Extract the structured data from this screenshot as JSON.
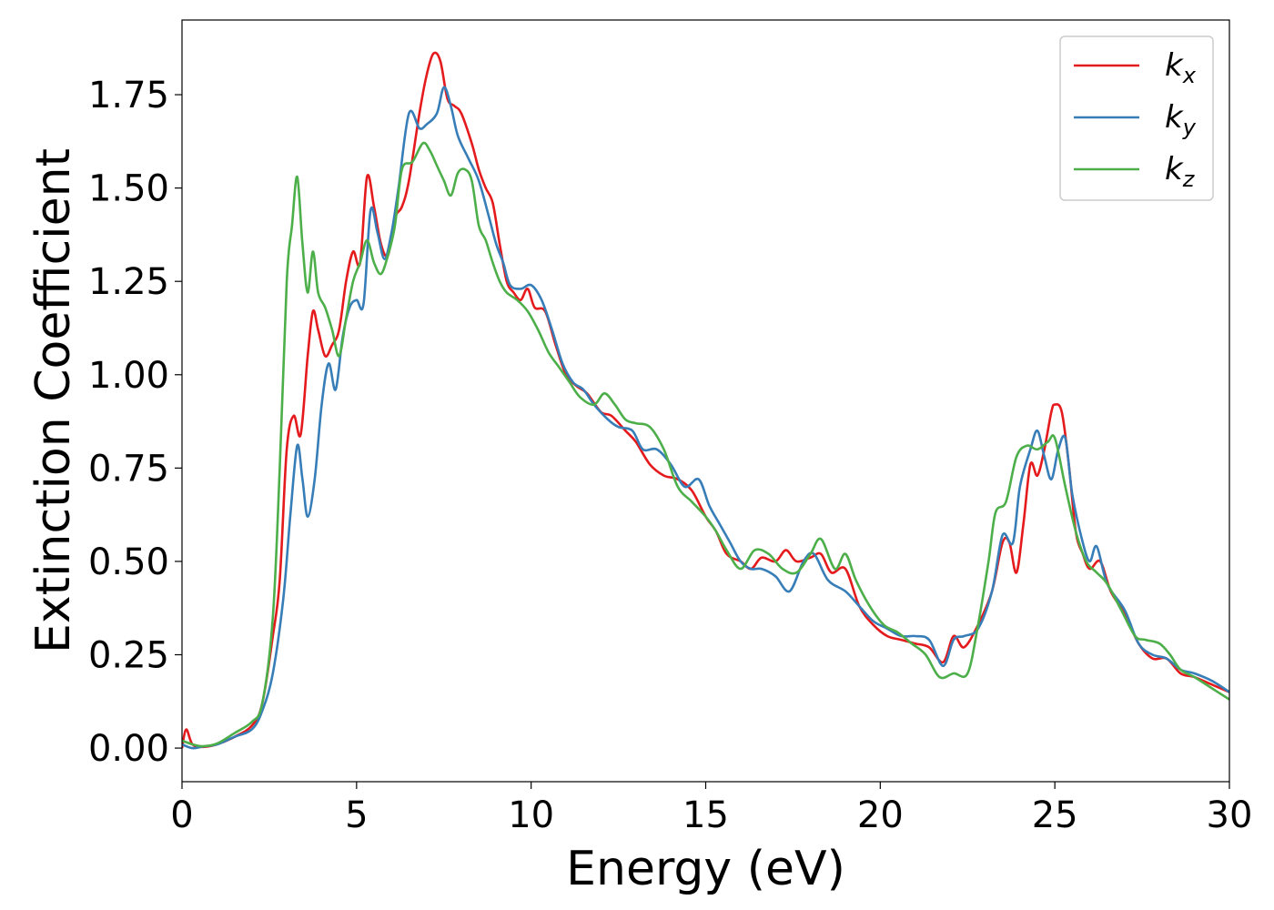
{
  "chart_data": {
    "type": "line",
    "title": "",
    "xlabel": "Energy (eV)",
    "ylabel": "Extinction Coefficient",
    "xlim": [
      0,
      30
    ],
    "ylim": [
      -0.09,
      1.95
    ],
    "x_ticks": [
      0,
      5,
      10,
      15,
      20,
      25,
      30
    ],
    "y_ticks": [
      0.0,
      0.25,
      0.5,
      0.75,
      1.0,
      1.25,
      1.5,
      1.75
    ],
    "grid": false,
    "legend_position": "top-right",
    "series": [
      {
        "name": "k_x",
        "label_main": "k",
        "label_sub": "x",
        "color": "#e41a1c",
        "points": [
          [
            0,
            0.0
          ],
          [
            0.12,
            0.05
          ],
          [
            0.3,
            0.01
          ],
          [
            0.6,
            0.003
          ],
          [
            1.0,
            0.01
          ],
          [
            1.5,
            0.03
          ],
          [
            2.0,
            0.06
          ],
          [
            2.3,
            0.12
          ],
          [
            2.6,
            0.3
          ],
          [
            2.8,
            0.45
          ],
          [
            3.0,
            0.8
          ],
          [
            3.2,
            0.89
          ],
          [
            3.4,
            0.84
          ],
          [
            3.6,
            1.05
          ],
          [
            3.75,
            1.17
          ],
          [
            3.9,
            1.12
          ],
          [
            4.1,
            1.05
          ],
          [
            4.3,
            1.08
          ],
          [
            4.5,
            1.12
          ],
          [
            4.7,
            1.25
          ],
          [
            4.9,
            1.33
          ],
          [
            5.1,
            1.3
          ],
          [
            5.3,
            1.53
          ],
          [
            5.5,
            1.45
          ],
          [
            5.7,
            1.35
          ],
          [
            5.9,
            1.32
          ],
          [
            6.1,
            1.42
          ],
          [
            6.3,
            1.45
          ],
          [
            6.5,
            1.52
          ],
          [
            6.8,
            1.7
          ],
          [
            7.0,
            1.8
          ],
          [
            7.2,
            1.86
          ],
          [
            7.4,
            1.84
          ],
          [
            7.6,
            1.74
          ],
          [
            7.8,
            1.72
          ],
          [
            8.0,
            1.7
          ],
          [
            8.3,
            1.62
          ],
          [
            8.5,
            1.55
          ],
          [
            8.7,
            1.5
          ],
          [
            8.9,
            1.46
          ],
          [
            9.1,
            1.35
          ],
          [
            9.3,
            1.25
          ],
          [
            9.5,
            1.22
          ],
          [
            9.7,
            1.2
          ],
          [
            9.9,
            1.23
          ],
          [
            10.1,
            1.18
          ],
          [
            10.4,
            1.17
          ],
          [
            10.7,
            1.08
          ],
          [
            11.0,
            1.0
          ],
          [
            11.3,
            0.97
          ],
          [
            11.6,
            0.95
          ],
          [
            12.0,
            0.9
          ],
          [
            12.3,
            0.89
          ],
          [
            12.7,
            0.85
          ],
          [
            13.0,
            0.82
          ],
          [
            13.4,
            0.76
          ],
          [
            13.8,
            0.73
          ],
          [
            14.2,
            0.72
          ],
          [
            14.6,
            0.69
          ],
          [
            15.0,
            0.62
          ],
          [
            15.3,
            0.58
          ],
          [
            15.6,
            0.52
          ],
          [
            16.0,
            0.5
          ],
          [
            16.3,
            0.48
          ],
          [
            16.6,
            0.51
          ],
          [
            17.0,
            0.5
          ],
          [
            17.3,
            0.53
          ],
          [
            17.6,
            0.5
          ],
          [
            18.0,
            0.51
          ],
          [
            18.3,
            0.52
          ],
          [
            18.6,
            0.47
          ],
          [
            19.0,
            0.48
          ],
          [
            19.4,
            0.38
          ],
          [
            19.8,
            0.33
          ],
          [
            20.2,
            0.3
          ],
          [
            20.6,
            0.29
          ],
          [
            21.0,
            0.28
          ],
          [
            21.4,
            0.27
          ],
          [
            21.8,
            0.23
          ],
          [
            22.1,
            0.3
          ],
          [
            22.4,
            0.27
          ],
          [
            22.8,
            0.33
          ],
          [
            23.2,
            0.42
          ],
          [
            23.5,
            0.55
          ],
          [
            23.7,
            0.55
          ],
          [
            23.9,
            0.47
          ],
          [
            24.1,
            0.6
          ],
          [
            24.3,
            0.76
          ],
          [
            24.5,
            0.73
          ],
          [
            24.7,
            0.8
          ],
          [
            24.9,
            0.9
          ],
          [
            25.0,
            0.92
          ],
          [
            25.2,
            0.9
          ],
          [
            25.4,
            0.76
          ],
          [
            25.6,
            0.58
          ],
          [
            25.8,
            0.52
          ],
          [
            26.0,
            0.48
          ],
          [
            26.3,
            0.5
          ],
          [
            26.6,
            0.42
          ],
          [
            27.0,
            0.36
          ],
          [
            27.4,
            0.28
          ],
          [
            27.8,
            0.24
          ],
          [
            28.2,
            0.24
          ],
          [
            28.6,
            0.2
          ],
          [
            29.0,
            0.19
          ],
          [
            29.5,
            0.17
          ],
          [
            30.0,
            0.15
          ]
        ]
      },
      {
        "name": "k_y",
        "label_main": "k",
        "label_sub": "y",
        "color": "#377eb8",
        "points": [
          [
            0,
            0.01
          ],
          [
            0.3,
            0.0
          ],
          [
            0.6,
            0.004
          ],
          [
            1.0,
            0.01
          ],
          [
            1.5,
            0.03
          ],
          [
            2.0,
            0.05
          ],
          [
            2.3,
            0.1
          ],
          [
            2.6,
            0.2
          ],
          [
            2.9,
            0.4
          ],
          [
            3.1,
            0.62
          ],
          [
            3.3,
            0.81
          ],
          [
            3.45,
            0.72
          ],
          [
            3.6,
            0.62
          ],
          [
            3.8,
            0.72
          ],
          [
            4.0,
            0.92
          ],
          [
            4.2,
            1.03
          ],
          [
            4.4,
            0.96
          ],
          [
            4.6,
            1.1
          ],
          [
            4.8,
            1.18
          ],
          [
            5.0,
            1.2
          ],
          [
            5.2,
            1.19
          ],
          [
            5.4,
            1.44
          ],
          [
            5.6,
            1.38
          ],
          [
            5.8,
            1.31
          ],
          [
            6.0,
            1.38
          ],
          [
            6.2,
            1.5
          ],
          [
            6.5,
            1.7
          ],
          [
            6.8,
            1.66
          ],
          [
            7.0,
            1.67
          ],
          [
            7.3,
            1.7
          ],
          [
            7.5,
            1.77
          ],
          [
            7.7,
            1.72
          ],
          [
            7.9,
            1.64
          ],
          [
            8.2,
            1.58
          ],
          [
            8.5,
            1.52
          ],
          [
            8.8,
            1.42
          ],
          [
            9.0,
            1.35
          ],
          [
            9.2,
            1.3
          ],
          [
            9.4,
            1.24
          ],
          [
            9.7,
            1.23
          ],
          [
            10.0,
            1.24
          ],
          [
            10.3,
            1.2
          ],
          [
            10.6,
            1.12
          ],
          [
            10.9,
            1.03
          ],
          [
            11.2,
            0.98
          ],
          [
            11.5,
            0.96
          ],
          [
            11.8,
            0.92
          ],
          [
            12.2,
            0.88
          ],
          [
            12.5,
            0.86
          ],
          [
            12.9,
            0.85
          ],
          [
            13.2,
            0.8
          ],
          [
            13.6,
            0.8
          ],
          [
            14.0,
            0.76
          ],
          [
            14.4,
            0.7
          ],
          [
            14.8,
            0.72
          ],
          [
            15.1,
            0.65
          ],
          [
            15.4,
            0.6
          ],
          [
            15.7,
            0.55
          ],
          [
            16.0,
            0.5
          ],
          [
            16.3,
            0.48
          ],
          [
            16.6,
            0.48
          ],
          [
            17.0,
            0.46
          ],
          [
            17.4,
            0.42
          ],
          [
            17.8,
            0.5
          ],
          [
            18.1,
            0.52
          ],
          [
            18.5,
            0.45
          ],
          [
            19.0,
            0.42
          ],
          [
            19.4,
            0.38
          ],
          [
            19.8,
            0.34
          ],
          [
            20.2,
            0.32
          ],
          [
            20.6,
            0.3
          ],
          [
            21.0,
            0.3
          ],
          [
            21.4,
            0.29
          ],
          [
            21.8,
            0.22
          ],
          [
            22.1,
            0.29
          ],
          [
            22.4,
            0.3
          ],
          [
            22.8,
            0.32
          ],
          [
            23.2,
            0.42
          ],
          [
            23.5,
            0.57
          ],
          [
            23.8,
            0.55
          ],
          [
            24.0,
            0.7
          ],
          [
            24.3,
            0.8
          ],
          [
            24.5,
            0.85
          ],
          [
            24.7,
            0.78
          ],
          [
            24.9,
            0.72
          ],
          [
            25.1,
            0.8
          ],
          [
            25.3,
            0.83
          ],
          [
            25.5,
            0.68
          ],
          [
            25.8,
            0.55
          ],
          [
            26.0,
            0.5
          ],
          [
            26.2,
            0.54
          ],
          [
            26.5,
            0.44
          ],
          [
            27.0,
            0.37
          ],
          [
            27.4,
            0.28
          ],
          [
            27.8,
            0.25
          ],
          [
            28.2,
            0.24
          ],
          [
            28.6,
            0.21
          ],
          [
            29.0,
            0.2
          ],
          [
            29.5,
            0.18
          ],
          [
            30.0,
            0.15
          ]
        ]
      },
      {
        "name": "k_z",
        "label_main": "k",
        "label_sub": "z",
        "color": "#4daf4a",
        "points": [
          [
            0,
            0.02
          ],
          [
            0.3,
            0.01
          ],
          [
            0.6,
            0.005
          ],
          [
            1.0,
            0.012
          ],
          [
            1.5,
            0.04
          ],
          [
            2.0,
            0.07
          ],
          [
            2.3,
            0.12
          ],
          [
            2.6,
            0.35
          ],
          [
            2.8,
            0.75
          ],
          [
            3.0,
            1.25
          ],
          [
            3.15,
            1.4
          ],
          [
            3.3,
            1.53
          ],
          [
            3.45,
            1.35
          ],
          [
            3.6,
            1.22
          ],
          [
            3.75,
            1.33
          ],
          [
            3.9,
            1.22
          ],
          [
            4.1,
            1.18
          ],
          [
            4.3,
            1.12
          ],
          [
            4.5,
            1.05
          ],
          [
            4.7,
            1.15
          ],
          [
            4.9,
            1.25
          ],
          [
            5.1,
            1.3
          ],
          [
            5.3,
            1.36
          ],
          [
            5.5,
            1.3
          ],
          [
            5.7,
            1.27
          ],
          [
            5.9,
            1.32
          ],
          [
            6.1,
            1.4
          ],
          [
            6.3,
            1.55
          ],
          [
            6.6,
            1.57
          ],
          [
            6.9,
            1.62
          ],
          [
            7.1,
            1.6
          ],
          [
            7.3,
            1.56
          ],
          [
            7.5,
            1.52
          ],
          [
            7.7,
            1.48
          ],
          [
            7.9,
            1.54
          ],
          [
            8.1,
            1.55
          ],
          [
            8.3,
            1.52
          ],
          [
            8.5,
            1.4
          ],
          [
            8.7,
            1.36
          ],
          [
            8.9,
            1.3
          ],
          [
            9.1,
            1.25
          ],
          [
            9.3,
            1.22
          ],
          [
            9.6,
            1.2
          ],
          [
            9.9,
            1.17
          ],
          [
            10.2,
            1.12
          ],
          [
            10.5,
            1.06
          ],
          [
            10.8,
            1.02
          ],
          [
            11.1,
            0.98
          ],
          [
            11.4,
            0.94
          ],
          [
            11.8,
            0.92
          ],
          [
            12.1,
            0.95
          ],
          [
            12.4,
            0.92
          ],
          [
            12.7,
            0.88
          ],
          [
            13.0,
            0.87
          ],
          [
            13.4,
            0.86
          ],
          [
            13.8,
            0.8
          ],
          [
            14.2,
            0.7
          ],
          [
            14.6,
            0.66
          ],
          [
            15.0,
            0.62
          ],
          [
            15.3,
            0.58
          ],
          [
            15.6,
            0.53
          ],
          [
            16.0,
            0.48
          ],
          [
            16.4,
            0.53
          ],
          [
            16.8,
            0.52
          ],
          [
            17.2,
            0.48
          ],
          [
            17.6,
            0.47
          ],
          [
            18.0,
            0.52
          ],
          [
            18.3,
            0.56
          ],
          [
            18.7,
            0.48
          ],
          [
            19.0,
            0.52
          ],
          [
            19.3,
            0.45
          ],
          [
            19.7,
            0.38
          ],
          [
            20.1,
            0.33
          ],
          [
            20.5,
            0.31
          ],
          [
            20.9,
            0.28
          ],
          [
            21.3,
            0.25
          ],
          [
            21.7,
            0.19
          ],
          [
            22.1,
            0.2
          ],
          [
            22.5,
            0.2
          ],
          [
            22.8,
            0.33
          ],
          [
            23.1,
            0.5
          ],
          [
            23.3,
            0.63
          ],
          [
            23.6,
            0.66
          ],
          [
            23.9,
            0.78
          ],
          [
            24.2,
            0.81
          ],
          [
            24.5,
            0.8
          ],
          [
            24.8,
            0.82
          ],
          [
            25.0,
            0.83
          ],
          [
            25.3,
            0.7
          ],
          [
            25.6,
            0.58
          ],
          [
            25.9,
            0.5
          ],
          [
            26.2,
            0.47
          ],
          [
            26.5,
            0.44
          ],
          [
            26.9,
            0.37
          ],
          [
            27.3,
            0.3
          ],
          [
            27.6,
            0.29
          ],
          [
            28.0,
            0.28
          ],
          [
            28.3,
            0.25
          ],
          [
            28.6,
            0.21
          ],
          [
            29.0,
            0.19
          ],
          [
            29.5,
            0.16
          ],
          [
            30.0,
            0.13
          ]
        ]
      }
    ]
  }
}
